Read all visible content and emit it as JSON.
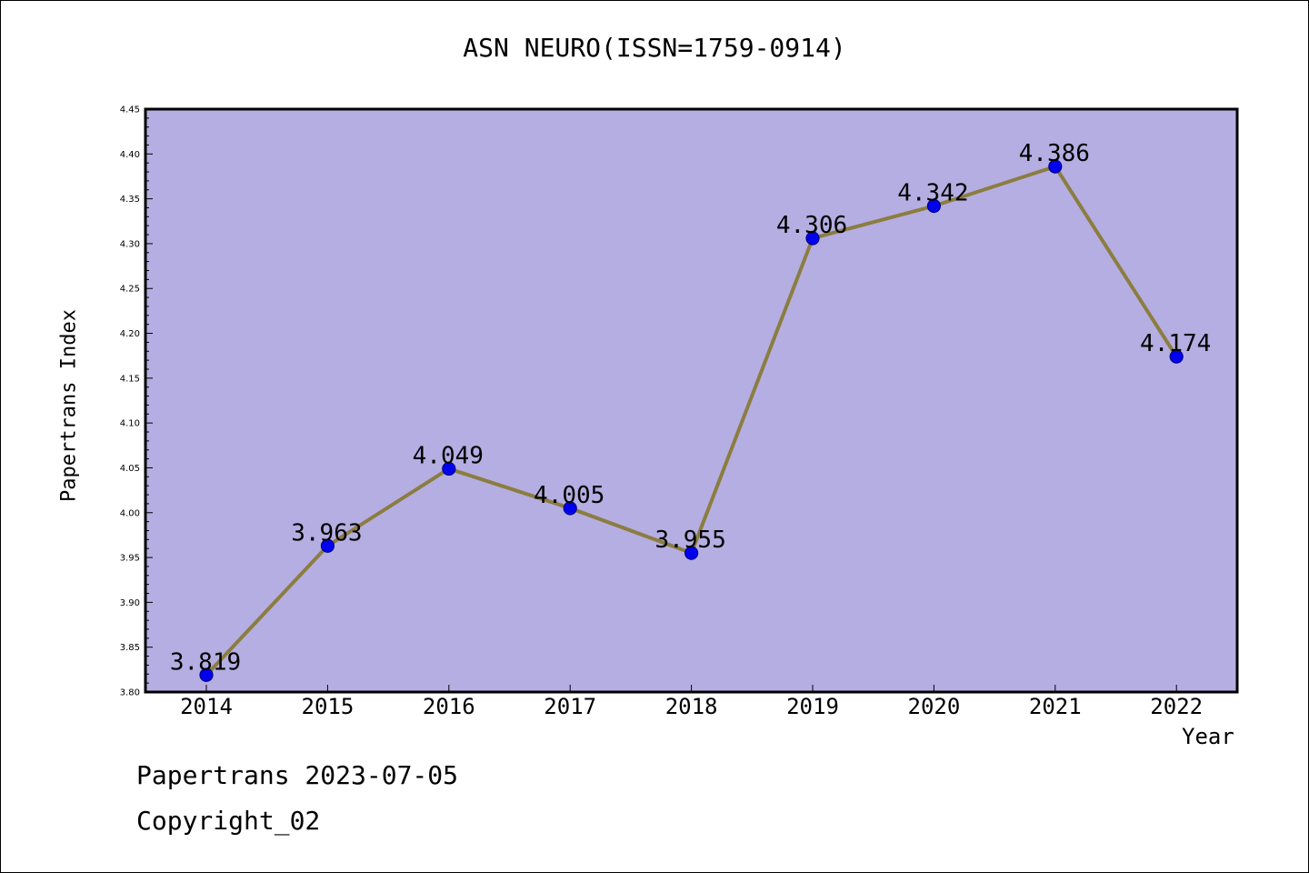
{
  "chart_data": {
    "type": "line",
    "title": "ASN NEURO(ISSN=1759-0914)",
    "xlabel": "Year",
    "ylabel": "Papertrans Index",
    "categories": [
      "2014",
      "2015",
      "2016",
      "2017",
      "2018",
      "2019",
      "2020",
      "2021",
      "2022"
    ],
    "series": [
      {
        "values": [
          3.819,
          3.963,
          4.049,
          4.005,
          3.955,
          4.306,
          4.342,
          4.386,
          4.174
        ],
        "labels": [
          "3.819",
          "3.963",
          "4.049",
          "4.005",
          "3.955",
          "4.306",
          "4.342",
          "4.386",
          "4.174"
        ]
      }
    ],
    "ylim": [
      3.8,
      4.45
    ],
    "yticks": [
      "3.80",
      "3.85",
      "3.90",
      "3.95",
      "4.00",
      "4.05",
      "4.10",
      "4.15",
      "4.20",
      "4.25",
      "4.30",
      "4.35",
      "4.40",
      "4.45"
    ],
    "grid": false,
    "legend": "none",
    "colors": {
      "plot_background": "#b5aee2",
      "line": "#8b7d3f",
      "marker_fill": "#0000ee",
      "marker_edge": "#00008b"
    }
  },
  "footer": {
    "line1": "Papertrans 2023-07-05",
    "line2": "Copyright_02"
  }
}
